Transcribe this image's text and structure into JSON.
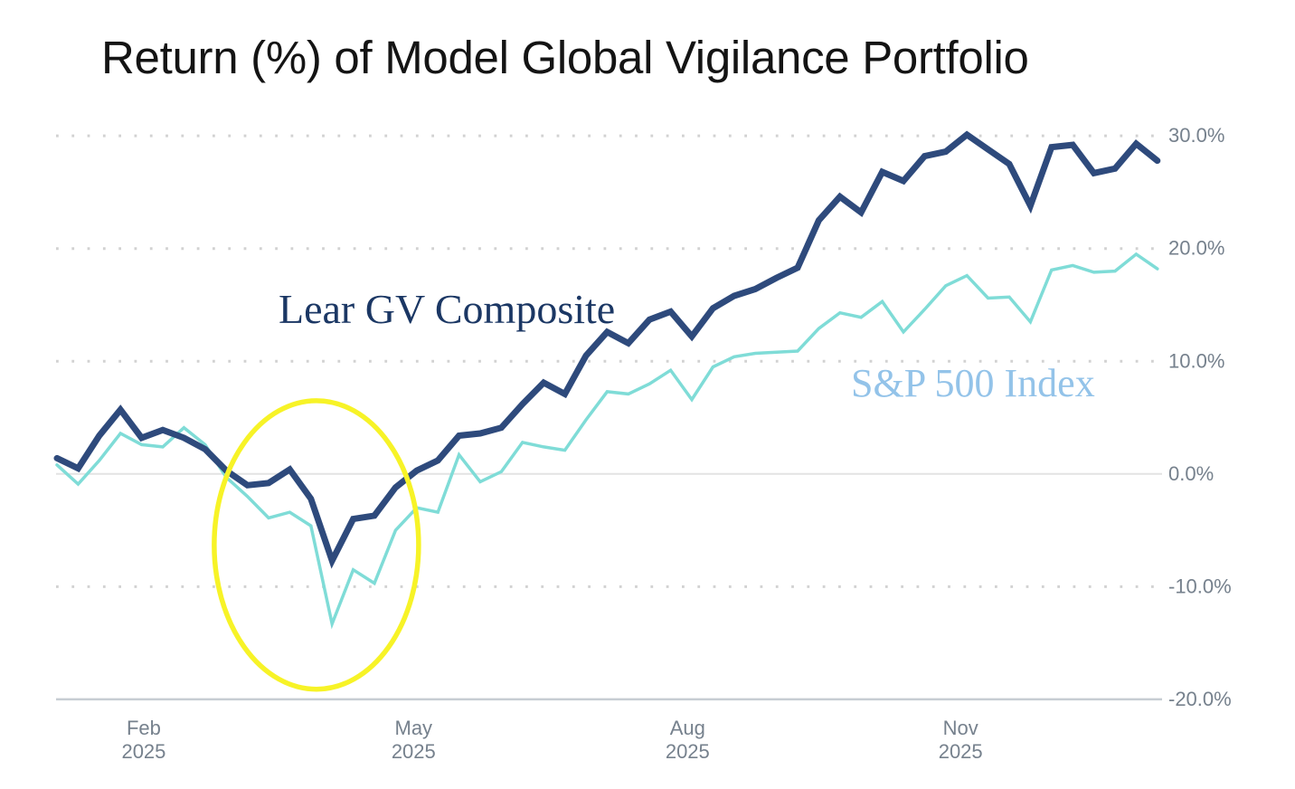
{
  "header": {
    "title": "Return (%) of Model Global Vigilance Portfolio"
  },
  "chart_data": {
    "type": "line",
    "title": "Return (%) of Model Global Vigilance Portfolio",
    "x_unit": "weekly returns, Jan 2025 - Dec 2025",
    "x_axis": {
      "ticks": [
        {
          "month": "Feb",
          "year": "2025",
          "week_pos": 4.1
        },
        {
          "month": "May",
          "year": "2025",
          "week_pos": 16.85
        },
        {
          "month": "Aug",
          "year": "2025",
          "week_pos": 29.8
        },
        {
          "month": "Nov",
          "year": "2025",
          "week_pos": 42.7
        }
      ]
    },
    "y_axis": {
      "range": [
        -20,
        30
      ],
      "grid": "dotted horizontal lines at each 10%",
      "ticks": [
        {
          "label": "30.0%",
          "value": 30,
          "style": "dotted"
        },
        {
          "label": "20.0%",
          "value": 20,
          "style": "dotted"
        },
        {
          "label": "10.0%",
          "value": 10,
          "style": "dotted"
        },
        {
          "label": "0.0%",
          "value": 0,
          "style": "solid"
        },
        {
          "label": "-10.0%",
          "value": -10,
          "style": "dotted"
        },
        {
          "label": "-20.0%",
          "value": -20,
          "style": "axis"
        }
      ]
    },
    "series": [
      {
        "name": "Lear GV Composite",
        "color": "#2e4a7c",
        "label_color": "#1b3764",
        "stroke_width": 7,
        "values": [
          1.4,
          0.5,
          3.4,
          5.7,
          3.2,
          3.9,
          3.2,
          2.2,
          0.3,
          -1.0,
          -0.8,
          0.4,
          -2.2,
          -7.7,
          -4.0,
          -3.7,
          -1.2,
          0.3,
          1.2,
          3.4,
          3.6,
          4.1,
          6.2,
          8.1,
          7.1,
          10.5,
          12.6,
          11.6,
          13.7,
          14.4,
          12.2,
          14.7,
          15.8,
          16.4,
          17.4,
          18.3,
          22.5,
          24.6,
          23.2,
          26.8,
          26.0,
          28.2,
          28.6,
          30.1,
          28.8,
          27.5,
          23.8,
          29.0,
          29.2,
          26.7,
          27.1,
          29.3,
          27.8
        ]
      },
      {
        "name": "S&P 500 Index",
        "color": "#7fdcd7",
        "label_color": "#93c3e9",
        "stroke_width": 3.5,
        "values": [
          0.8,
          -0.9,
          1.2,
          3.6,
          2.6,
          2.4,
          4.1,
          2.6,
          -0.3,
          -2.0,
          -3.9,
          -3.4,
          -4.6,
          -13.3,
          -8.5,
          -9.7,
          -5.0,
          -3.0,
          -3.4,
          1.7,
          -0.7,
          0.2,
          2.8,
          2.4,
          2.1,
          4.8,
          7.3,
          7.1,
          8.0,
          9.2,
          6.6,
          9.5,
          10.4,
          10.7,
          10.8,
          10.9,
          12.9,
          14.3,
          13.9,
          15.3,
          12.6,
          14.6,
          16.7,
          17.6,
          15.6,
          15.7,
          13.5,
          18.1,
          18.5,
          17.9,
          18.0,
          19.5,
          18.2
        ]
      }
    ],
    "annotation": {
      "shape": "ellipse",
      "purpose": "highlights spring 2025 drawdown of both lines",
      "center_week": 12.26,
      "center_value": -6.3,
      "radius_weeks": 4.83,
      "radius_percent": 12.8,
      "color": "#f7f327",
      "stroke_width": 5.5
    },
    "grid_colors": {
      "dotted": "#d2d2d2",
      "zero_line": "#e3e3e3",
      "axis_line": "#c7cdd3",
      "tick_label": "#76818d"
    }
  }
}
